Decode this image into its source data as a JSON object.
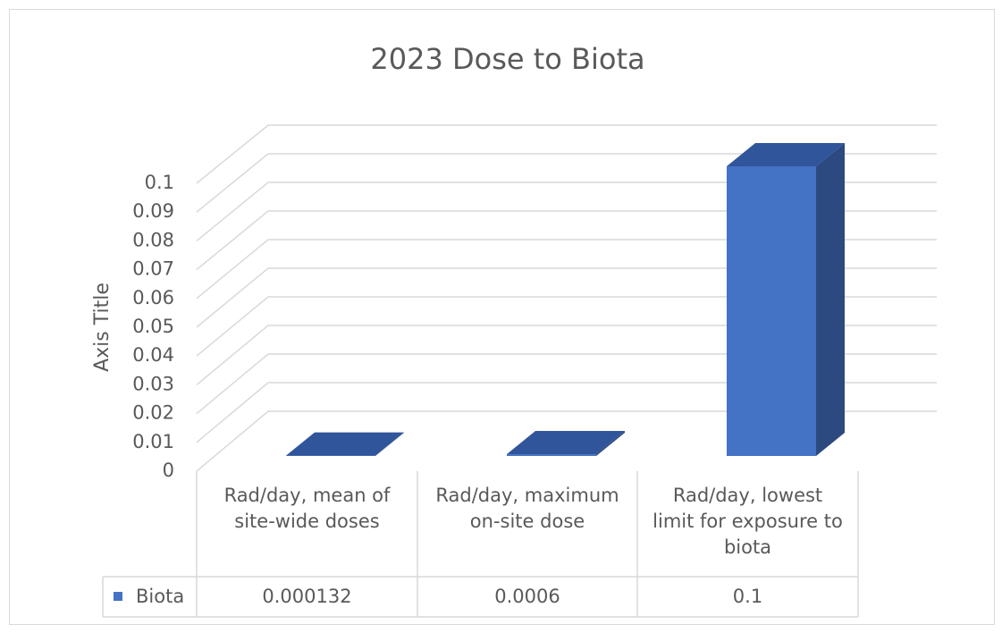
{
  "chart_data": {
    "type": "bar3d",
    "title": "2023 Dose to Biota",
    "y_axis_label": "Axis Title",
    "categories": [
      "Rad/day, mean of site-wide doses",
      "Rad/day, maximum on-site dose",
      "Rad/day, lowest limit for exposure to biota"
    ],
    "series": [
      {
        "name": "Biota",
        "color": "#4472c4",
        "values": [
          0.000132,
          0.0006,
          0.1
        ]
      }
    ],
    "ylim": [
      0,
      0.1
    ],
    "yticks": [
      0,
      0.01,
      0.02,
      0.03,
      0.04,
      0.05,
      0.06,
      0.07,
      0.08,
      0.09,
      0.1
    ],
    "grid": true,
    "data_table": true
  }
}
